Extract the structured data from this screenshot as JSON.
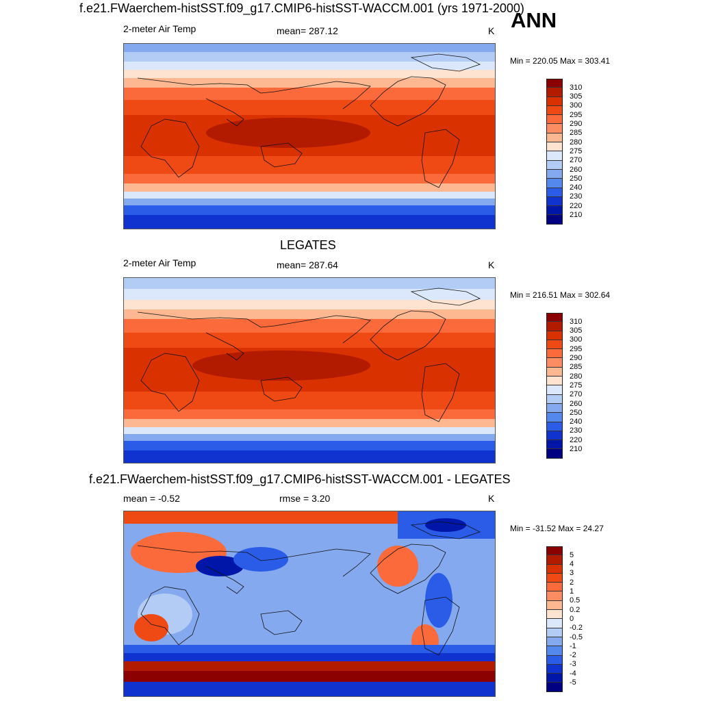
{
  "header": {
    "title": "f.e21.FWaerchem-histSST.f09_g17.CMIP6-histSST-WACCM.001 (yrs 1971-2000)",
    "season": "ANN"
  },
  "panels": [
    {
      "id": "model",
      "title": "",
      "variable": "2-meter Air Temp",
      "stat": "mean= 287.12",
      "units": "K",
      "minmax": "Min = 220.05 Max = 303.41",
      "levels": [
        "310",
        "305",
        "300",
        "295",
        "290",
        "285",
        "280",
        "275",
        "270",
        "260",
        "250",
        "240",
        "230",
        "220",
        "210"
      ],
      "colors": [
        "#8b0000",
        "#b31b00",
        "#d93200",
        "#f04a14",
        "#fb6a3a",
        "#fc8d62",
        "#fdb891",
        "#fde3d0",
        "#dbe8fb",
        "#b3ccf5",
        "#84a9ef",
        "#5588ec",
        "#2a5ce8",
        "#1033cf",
        "#0016a8",
        "#000080"
      ]
    },
    {
      "id": "obs",
      "title": "LEGATES",
      "variable": "2-meter Air Temp",
      "stat": "mean= 287.64",
      "units": "K",
      "minmax": "Min = 216.51 Max = 302.64",
      "levels": [
        "310",
        "305",
        "300",
        "295",
        "290",
        "285",
        "280",
        "275",
        "270",
        "260",
        "250",
        "240",
        "230",
        "220",
        "210"
      ],
      "colors": [
        "#8b0000",
        "#b31b00",
        "#d93200",
        "#f04a14",
        "#fb6a3a",
        "#fc8d62",
        "#fdb891",
        "#fde3d0",
        "#dbe8fb",
        "#b3ccf5",
        "#84a9ef",
        "#5588ec",
        "#2a5ce8",
        "#1033cf",
        "#0016a8",
        "#000080"
      ]
    },
    {
      "id": "diff",
      "title": "f.e21.FWaerchem-histSST.f09_g17.CMIP6-histSST-WACCM.001 - LEGATES",
      "variable": "mean =  -0.52",
      "stat": "rmse =   3.20",
      "units": "K",
      "minmax": "Min = -31.52 Max =  24.27",
      "levels": [
        "5",
        "4",
        "3",
        "2",
        "1",
        "0.5",
        "0.2",
        "0",
        "-0.2",
        "-0.5",
        "-1",
        "-2",
        "-3",
        "-4",
        "-5"
      ],
      "colors": [
        "#8b0000",
        "#b31b00",
        "#d93200",
        "#f04a14",
        "#fb6a3a",
        "#fc8d62",
        "#fdb891",
        "#fde3d0",
        "#dbe8fb",
        "#b3ccf5",
        "#84a9ef",
        "#5588ec",
        "#2a5ce8",
        "#1033cf",
        "#0016a8",
        "#000080"
      ]
    }
  ]
}
